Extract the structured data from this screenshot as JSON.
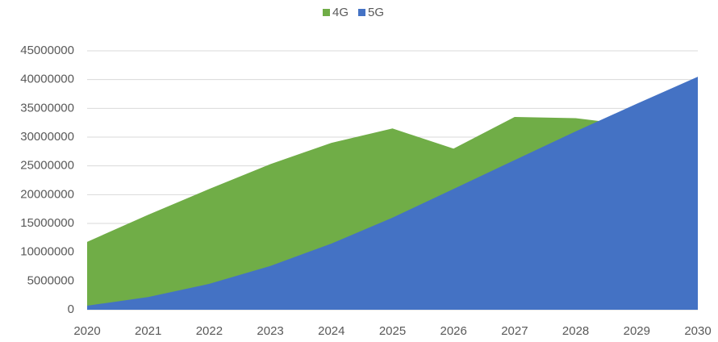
{
  "chart_data": {
    "type": "area",
    "x": [
      2020,
      2021,
      2022,
      2023,
      2024,
      2025,
      2026,
      2027,
      2028,
      2029,
      2030
    ],
    "series": [
      {
        "name": "4G",
        "color": "#70ad47",
        "values": [
          11800000,
          16500000,
          21000000,
          25300000,
          29000000,
          31500000,
          28000000,
          33500000,
          33300000,
          32000000,
          30000000
        ]
      },
      {
        "name": "5G",
        "color": "#4472c4",
        "values": [
          700000,
          2200000,
          4500000,
          7600000,
          11500000,
          16000000,
          21000000,
          26000000,
          31000000,
          35800000,
          40500000
        ]
      }
    ],
    "xlim": [
      2020,
      2030
    ],
    "xticks": [
      2020,
      2021,
      2022,
      2023,
      2024,
      2025,
      2026,
      2027,
      2028,
      2029,
      2030
    ],
    "ylim": [
      0,
      45000000
    ],
    "yticks": [
      0,
      5000000,
      10000000,
      15000000,
      20000000,
      25000000,
      30000000,
      35000000,
      40000000,
      45000000
    ],
    "grid": true,
    "legend": "top"
  }
}
